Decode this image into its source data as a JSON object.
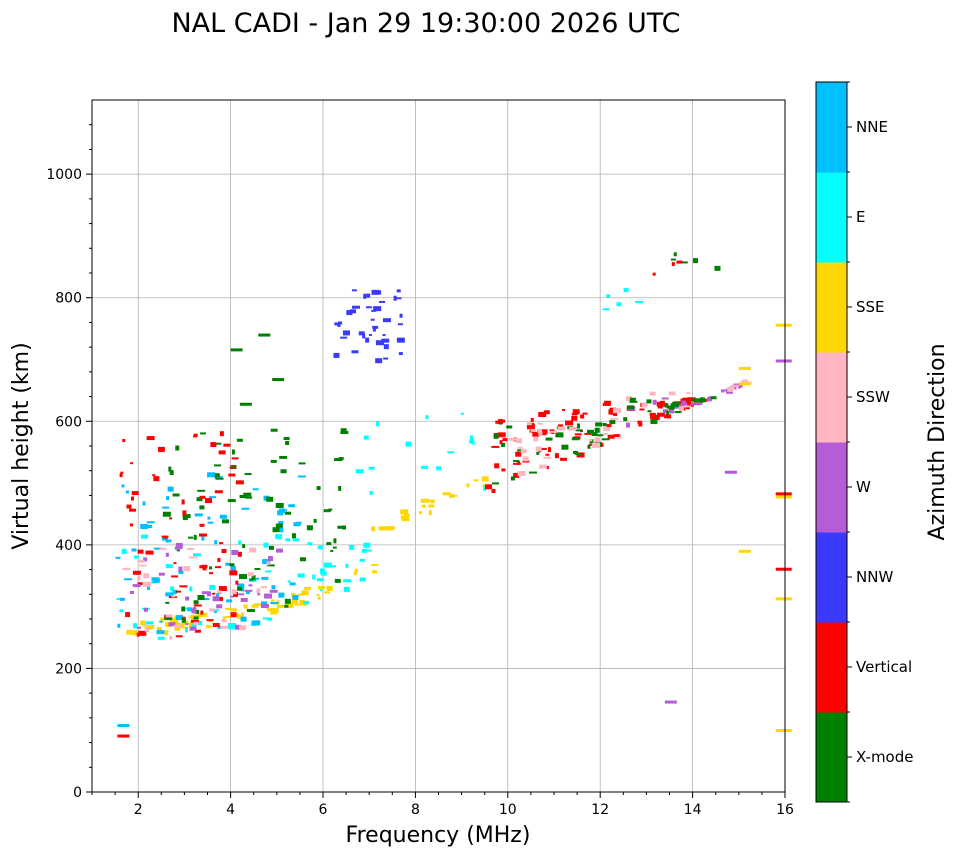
{
  "chart_data": {
    "type": "scatter",
    "title": "NAL CADI - Jan 29 19:30:00 2026 UTC",
    "xlabel": "Frequency (MHz)",
    "ylabel": "Virtual height (km)",
    "xlim": [
      1,
      16
    ],
    "ylim": [
      0,
      1120
    ],
    "xticks": [
      2,
      4,
      6,
      8,
      10,
      12,
      14,
      16
    ],
    "yticks": [
      0,
      200,
      400,
      600,
      800,
      1000
    ],
    "grid": true,
    "colorbar": {
      "label": "Azimuth Direction",
      "categories": [
        {
          "name": "X-mode",
          "color": "#008000"
        },
        {
          "name": "Vertical",
          "color": "#ff0000"
        },
        {
          "name": "NNW",
          "color": "#3a3aff"
        },
        {
          "name": "W",
          "color": "#b65cd6"
        },
        {
          "name": "SSW",
          "color": "#ffb6c1"
        },
        {
          "name": "SSE",
          "color": "#ffd700"
        },
        {
          "name": "E",
          "color": "#00ffff"
        },
        {
          "name": "NNE",
          "color": "#00bfff"
        }
      ]
    },
    "clusters": [
      {
        "category": "SSE",
        "f": [
          1.5,
          7.2
        ],
        "h": [
          245,
          400
        ],
        "n": 70,
        "trace": "f-layer-low"
      },
      {
        "category": "E",
        "f": [
          1.5,
          7.0
        ],
        "h": [
          250,
          420
        ],
        "n": 60
      },
      {
        "category": "NNE",
        "f": [
          1.5,
          5.5
        ],
        "h": [
          255,
          520
        ],
        "n": 70
      },
      {
        "category": "X-mode",
        "f": [
          2.5,
          6.5
        ],
        "h": [
          270,
          600
        ],
        "n": 80
      },
      {
        "category": "Vertical",
        "f": [
          1.5,
          4.2
        ],
        "h": [
          250,
          590
        ],
        "n": 70
      },
      {
        "category": "W",
        "f": [
          1.5,
          5.0
        ],
        "h": [
          250,
          420
        ],
        "n": 35
      },
      {
        "category": "SSW",
        "f": [
          1.5,
          5.0
        ],
        "h": [
          250,
          400
        ],
        "n": 30
      },
      {
        "category": "NNW",
        "f": [
          6.2,
          7.7
        ],
        "h": [
          700,
          820
        ],
        "n": 40
      },
      {
        "category": "SSE",
        "f": [
          7.0,
          9.5
        ],
        "h": [
          430,
          530
        ],
        "n": 25,
        "trace": "f-layer-mid"
      },
      {
        "category": "E",
        "f": [
          6.5,
          9.5
        ],
        "h": [
          440,
          620
        ],
        "n": 15
      },
      {
        "category": "Vertical",
        "f": [
          9.5,
          12.0
        ],
        "h": [
          490,
          620
        ],
        "n": 55
      },
      {
        "category": "X-mode",
        "f": [
          9.5,
          12.0
        ],
        "h": [
          500,
          600
        ],
        "n": 30
      },
      {
        "category": "SSW",
        "f": [
          10.0,
          12.5
        ],
        "h": [
          500,
          600
        ],
        "n": 25
      },
      {
        "category": "Vertical",
        "f": [
          12.0,
          14.2
        ],
        "h": [
          540,
          640
        ],
        "n": 45
      },
      {
        "category": "W",
        "f": [
          12.5,
          15.2
        ],
        "h": [
          520,
          640
        ],
        "n": 25
      },
      {
        "category": "SSW",
        "f": [
          12.2,
          15.2
        ],
        "h": [
          560,
          650
        ],
        "n": 15
      },
      {
        "category": "X-mode",
        "f": [
          12.0,
          14.5
        ],
        "h": [
          560,
          640
        ],
        "n": 20
      },
      {
        "category": "E",
        "f": [
          12.0,
          12.8
        ],
        "h": [
          780,
          830
        ],
        "n": 5
      },
      {
        "category": "X-mode",
        "f": [
          13.5,
          14.5
        ],
        "h": [
          840,
          885
        ],
        "n": 5
      },
      {
        "category": "Vertical",
        "f": [
          13.0,
          13.8
        ],
        "h": [
          825,
          865
        ],
        "n": 3
      }
    ],
    "points": [
      {
        "category": "NNE",
        "f": 1.55,
        "h": 110
      },
      {
        "category": "Vertical",
        "f": 1.55,
        "h": 93
      },
      {
        "category": "W",
        "f": 13.4,
        "h": 148
      },
      {
        "category": "SSE",
        "f": 15.8,
        "h": 102
      },
      {
        "category": "SSE",
        "f": 15.8,
        "h": 315
      },
      {
        "category": "Vertical",
        "f": 15.8,
        "h": 363
      },
      {
        "category": "SSE",
        "f": 15.8,
        "h": 480
      },
      {
        "category": "Vertical",
        "f": 15.8,
        "h": 485
      },
      {
        "category": "W",
        "f": 15.8,
        "h": 700
      },
      {
        "category": "SSE",
        "f": 15.8,
        "h": 758
      },
      {
        "category": "SSE",
        "f": 15.0,
        "h": 392
      },
      {
        "category": "SSE",
        "f": 15.0,
        "h": 688
      },
      {
        "category": "SSE",
        "f": 15.0,
        "h": 663
      },
      {
        "category": "W",
        "f": 14.7,
        "h": 520
      },
      {
        "category": "X-mode",
        "f": 4.2,
        "h": 630
      },
      {
        "category": "X-mode",
        "f": 4.0,
        "h": 718
      },
      {
        "category": "X-mode",
        "f": 4.6,
        "h": 742
      },
      {
        "category": "X-mode",
        "f": 4.9,
        "h": 670
      }
    ]
  }
}
